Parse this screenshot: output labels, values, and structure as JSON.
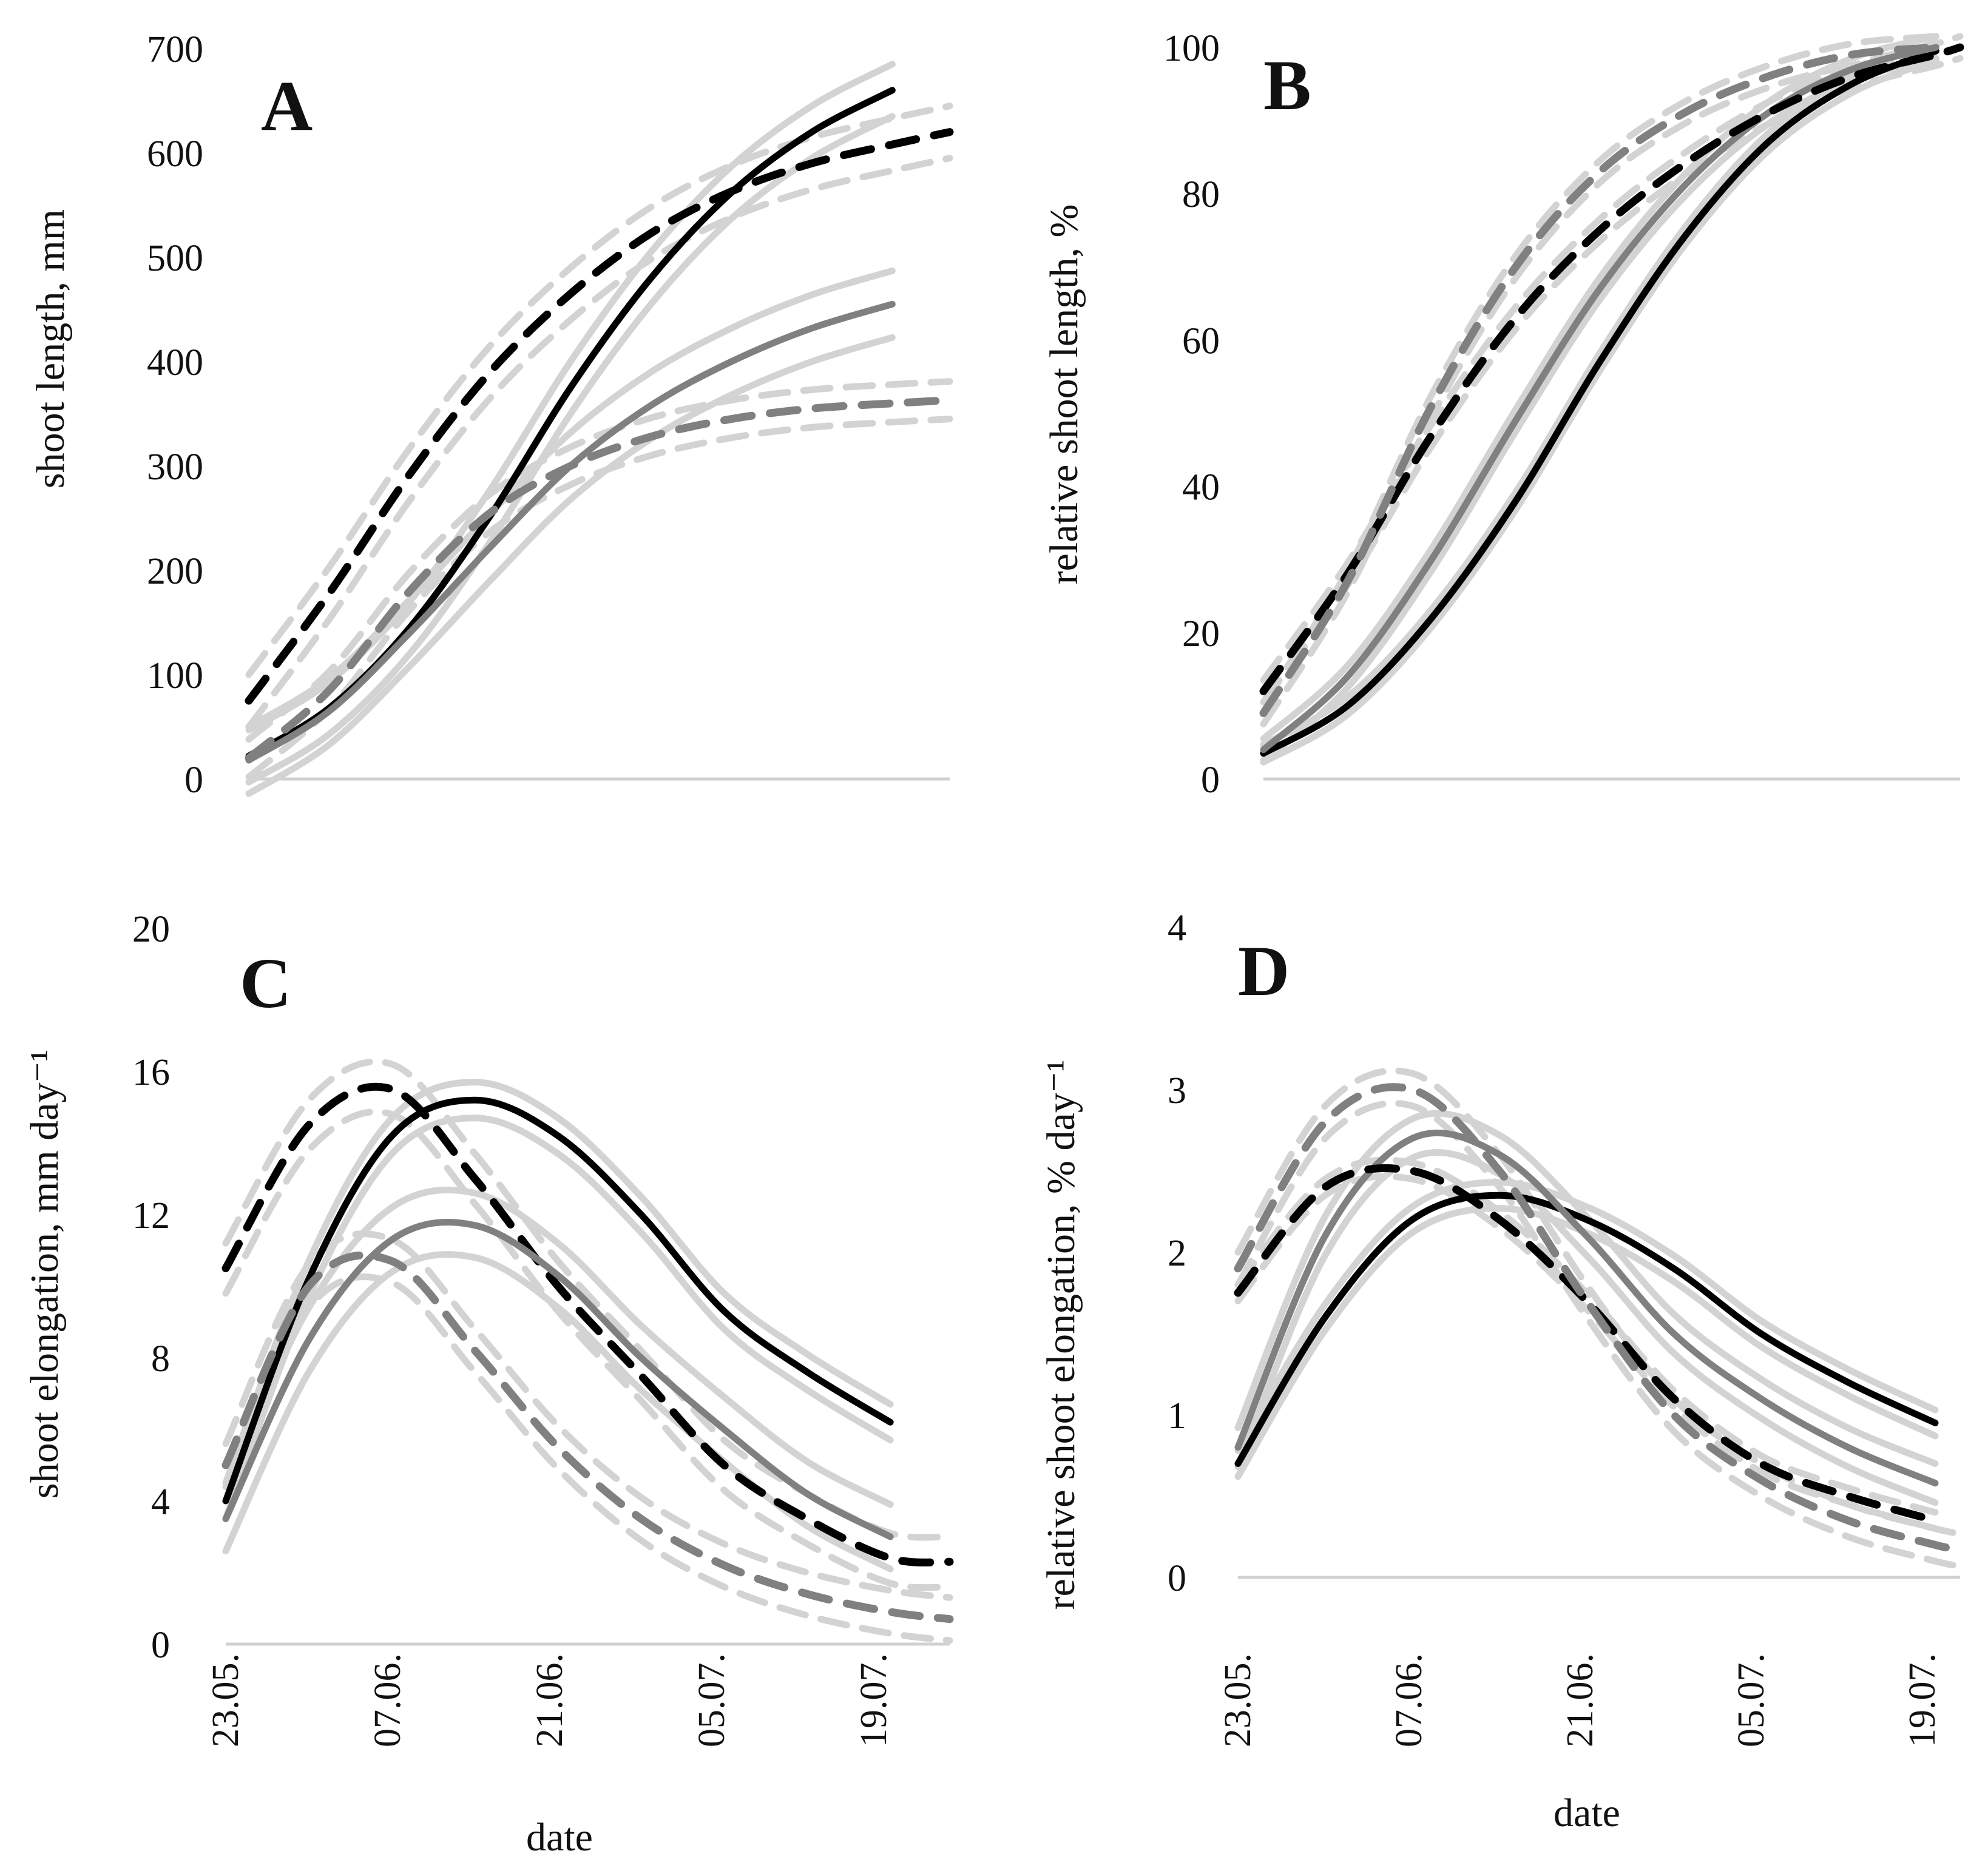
{
  "figure": {
    "x_dates": [
      "23.05.",
      "07.06.",
      "21.06.",
      "05.07.",
      "19.07."
    ]
  },
  "chart_data": [
    {
      "panel": "A",
      "type": "line",
      "ylabel": "shoot length, mm",
      "xlabel": "",
      "ylim": [
        0,
        700
      ],
      "yticks": [
        0,
        100,
        200,
        300,
        400,
        500,
        600,
        700
      ],
      "x_unit": "days since 23.05.",
      "xlim": [
        0,
        61
      ],
      "series": [
        {
          "name": "black solid",
          "color": "#000000",
          "dashed": false,
          "band": [
            -25,
            25
          ],
          "x": [
            0,
            7,
            14,
            21,
            28,
            35,
            42,
            49,
            56
          ],
          "values": [
            22,
            68,
            145,
            252,
            375,
            480,
            562,
            620,
            660
          ]
        },
        {
          "name": "black dashed",
          "color": "#000000",
          "dashed": true,
          "band": [
            -25,
            25
          ],
          "x": [
            0,
            7,
            14,
            21,
            28,
            35,
            42,
            49,
            56,
            61
          ],
          "values": [
            75,
            178,
            292,
            390,
            465,
            523,
            563,
            590,
            608,
            620
          ]
        },
        {
          "name": "grey solid",
          "color": "#808080",
          "dashed": false,
          "band": [
            -32,
            32
          ],
          "x": [
            0,
            7,
            14,
            21,
            28,
            35,
            42,
            49,
            56
          ],
          "values": [
            18,
            65,
            140,
            222,
            300,
            358,
            400,
            432,
            455
          ]
        },
        {
          "name": "grey dashed",
          "color": "#808080",
          "dashed": true,
          "band": [
            -18,
            18
          ],
          "x": [
            0,
            7,
            14,
            21,
            28,
            35,
            42,
            49,
            56,
            61
          ],
          "values": [
            20,
            85,
            180,
            255,
            300,
            328,
            345,
            355,
            360,
            363
          ]
        }
      ]
    },
    {
      "panel": "B",
      "type": "line",
      "ylabel": "relative shoot length, %",
      "xlabel": "",
      "ylim": [
        0,
        100
      ],
      "yticks": [
        0,
        20,
        40,
        60,
        80,
        100
      ],
      "x_unit": "days since 23.05.",
      "xlim": [
        0,
        58
      ],
      "series": [
        {
          "name": "black solid",
          "color": "#000000",
          "dashed": false,
          "band": [
            -1.2,
            1.2
          ],
          "x": [
            0,
            7,
            14,
            21,
            28,
            35,
            42,
            49,
            56
          ],
          "values": [
            3.5,
            10,
            22,
            38,
            57,
            74,
            87,
            95,
            99.5
          ]
        },
        {
          "name": "grey solid",
          "color": "#808080",
          "dashed": false,
          "band": [
            -1.5,
            1.5
          ],
          "x": [
            0,
            7,
            14,
            21,
            28,
            35,
            42,
            49,
            56
          ],
          "values": [
            4,
            14,
            30,
            49,
            67,
            81,
            91,
            97,
            100
          ]
        },
        {
          "name": "black dashed",
          "color": "#000000",
          "dashed": true,
          "band": [
            -1.5,
            1.5
          ],
          "x": [
            0,
            7,
            14,
            21,
            28,
            35,
            42,
            49,
            56,
            58
          ],
          "values": [
            12,
            28,
            47,
            63,
            75,
            84,
            91,
            96,
            99,
            100
          ]
        },
        {
          "name": "grey dashed",
          "color": "#808080",
          "dashed": true,
          "band": [
            -1.5,
            1.5
          ],
          "x": [
            0,
            7,
            14,
            21,
            28,
            35,
            42,
            49,
            56
          ],
          "values": [
            9,
            27,
            51,
            70,
            83,
            91,
            96,
            99,
            100
          ]
        }
      ]
    },
    {
      "panel": "C",
      "type": "line",
      "ylabel": "shoot elongation, mm day⁻¹",
      "xlabel": "date",
      "ylim": [
        0,
        20
      ],
      "yticks": [
        0,
        4,
        8,
        12,
        16,
        20
      ],
      "x_unit": "days since 23.05.",
      "xlim": [
        0,
        61
      ],
      "series": [
        {
          "name": "black solid",
          "color": "#000000",
          "dashed": false,
          "band": [
            -0.5,
            0.5
          ],
          "x": [
            0,
            7,
            14,
            21,
            28,
            35,
            42,
            49,
            56
          ],
          "values": [
            4,
            10.2,
            14.2,
            15.2,
            14.2,
            12,
            9.3,
            7.6,
            6.2
          ]
        },
        {
          "name": "black dashed",
          "color": "#000000",
          "dashed": true,
          "band": [
            -0.7,
            0.7
          ],
          "x": [
            0,
            7,
            14,
            21,
            28,
            35,
            42,
            49,
            56,
            61
          ],
          "values": [
            10.5,
            14.5,
            15.5,
            13,
            10,
            7.5,
            5,
            3.5,
            2.4,
            2.3
          ]
        },
        {
          "name": "grey solid",
          "color": "#808080",
          "dashed": false,
          "band": [
            -0.9,
            0.9
          ],
          "x": [
            0,
            7,
            14,
            21,
            28,
            35,
            42,
            49,
            56
          ],
          "values": [
            3.5,
            8.5,
            11.3,
            11.7,
            10.3,
            8,
            6,
            4.2,
            3
          ]
        },
        {
          "name": "grey dashed",
          "color": "#808080",
          "dashed": true,
          "band": [
            -0.6,
            0.6
          ],
          "x": [
            0,
            7,
            14,
            21,
            28,
            35,
            42,
            49,
            56,
            61
          ],
          "values": [
            5,
            10,
            10.7,
            8.2,
            5.5,
            3.5,
            2.2,
            1.4,
            0.9,
            0.7
          ]
        }
      ]
    },
    {
      "panel": "D",
      "type": "line",
      "ylabel": "relative shoot elongation, % day⁻¹",
      "xlabel": "date",
      "ylim": [
        0,
        4
      ],
      "yticks": [
        0,
        1,
        2,
        3,
        4
      ],
      "x_unit": "days since 23.05.",
      "xlim": [
        0,
        58
      ],
      "series": [
        {
          "name": "black solid",
          "color": "#000000",
          "dashed": false,
          "band": [
            -0.08,
            0.08
          ],
          "x": [
            0,
            7,
            14,
            21,
            28,
            35,
            42,
            49,
            56
          ],
          "values": [
            0.7,
            1.6,
            2.2,
            2.35,
            2.2,
            1.9,
            1.5,
            1.2,
            0.95
          ]
        },
        {
          "name": "grey solid",
          "color": "#808080",
          "dashed": false,
          "band": [
            -0.12,
            0.12
          ],
          "x": [
            0,
            7,
            14,
            21,
            28,
            35,
            42,
            49,
            56
          ],
          "values": [
            0.8,
            2.1,
            2.7,
            2.6,
            2.1,
            1.5,
            1.1,
            0.8,
            0.58
          ]
        },
        {
          "name": "black dashed",
          "color": "#000000",
          "dashed": true,
          "band": [
            -0.05,
            0.05
          ],
          "x": [
            0,
            7,
            14,
            21,
            28,
            35,
            42,
            49,
            56
          ],
          "values": [
            1.75,
            2.4,
            2.5,
            2.2,
            1.7,
            1.1,
            0.7,
            0.5,
            0.35
          ]
        },
        {
          "name": "grey dashed",
          "color": "#808080",
          "dashed": true,
          "band": [
            -0.1,
            0.1
          ],
          "x": [
            0,
            7,
            14,
            21,
            28,
            35,
            42,
            49,
            56,
            58
          ],
          "values": [
            1.9,
            2.8,
            3.0,
            2.5,
            1.7,
            1.0,
            0.6,
            0.35,
            0.2,
            0.17
          ]
        }
      ]
    }
  ]
}
